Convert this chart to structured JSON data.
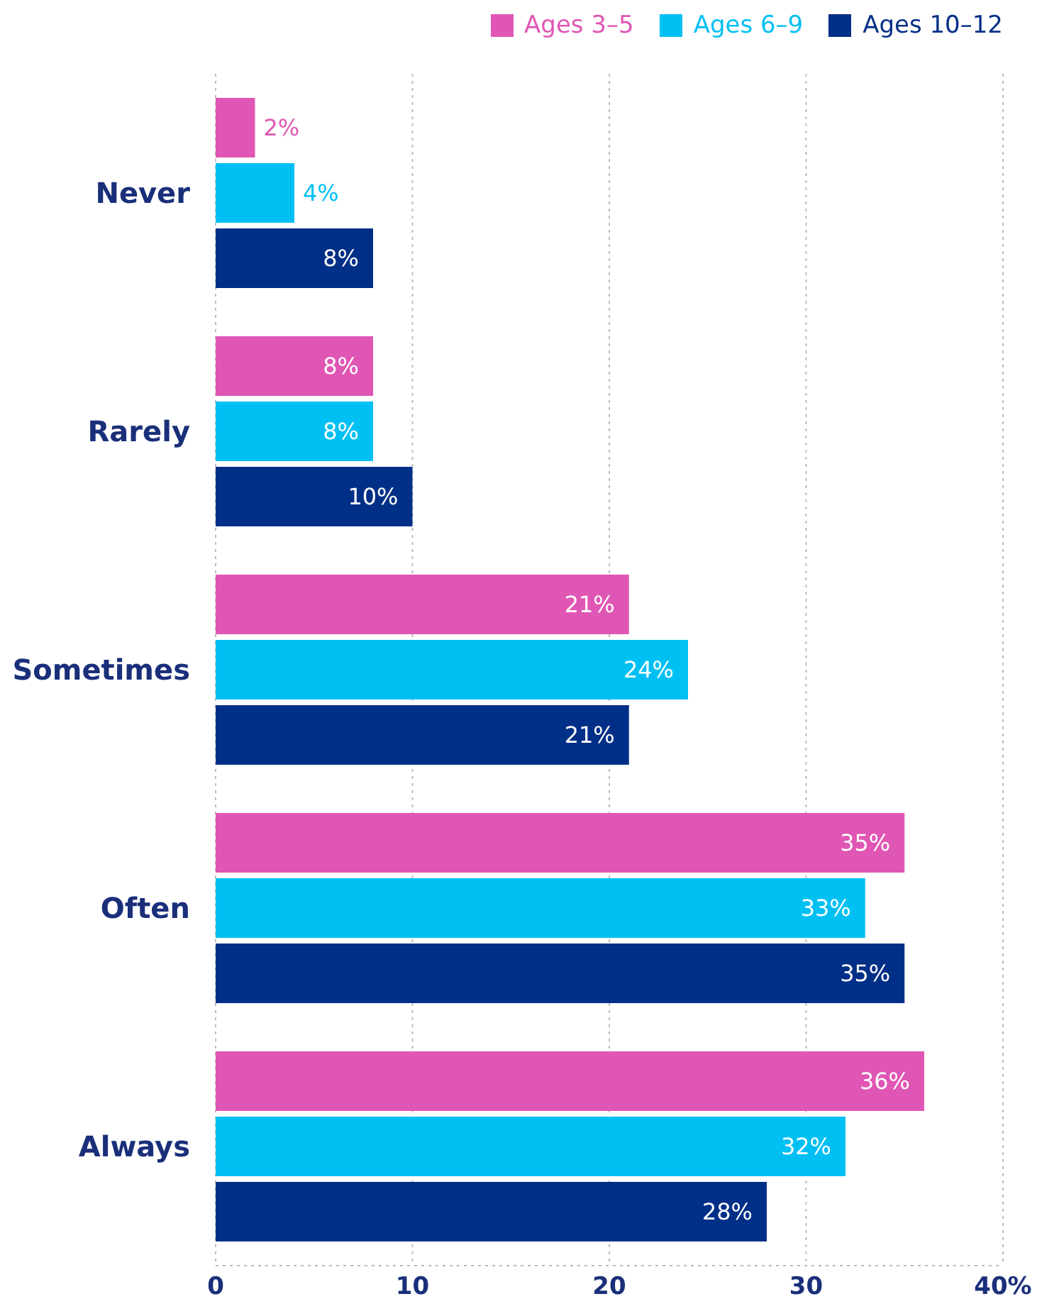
{
  "chart_data": {
    "type": "bar",
    "orientation": "horizontal",
    "categories": [
      "Never",
      "Rarely",
      "Sometimes",
      "Often",
      "Always"
    ],
    "series": [
      {
        "name": "Ages 3–5",
        "color": "#e056b4",
        "values": [
          2,
          8,
          21,
          35,
          36
        ],
        "value_labels": [
          "2%",
          "8%",
          "21%",
          "35%",
          "36%"
        ]
      },
      {
        "name": "Ages 6–9",
        "color": "#00c0f3",
        "values": [
          4,
          8,
          24,
          33,
          32
        ],
        "value_labels": [
          "4%",
          "8%",
          "24%",
          "33%",
          "32%"
        ]
      },
      {
        "name": "Ages 10–12",
        "color": "#002f87",
        "values": [
          8,
          10,
          21,
          35,
          28
        ],
        "value_labels": [
          "8%",
          "10%",
          "21%",
          "35%",
          "28%"
        ]
      }
    ],
    "xlim": [
      0,
      40
    ],
    "xticks": [
      0,
      10,
      20,
      30,
      {
        "value": 40,
        "label": "40%"
      }
    ],
    "grid": "x",
    "legend": "top right"
  }
}
